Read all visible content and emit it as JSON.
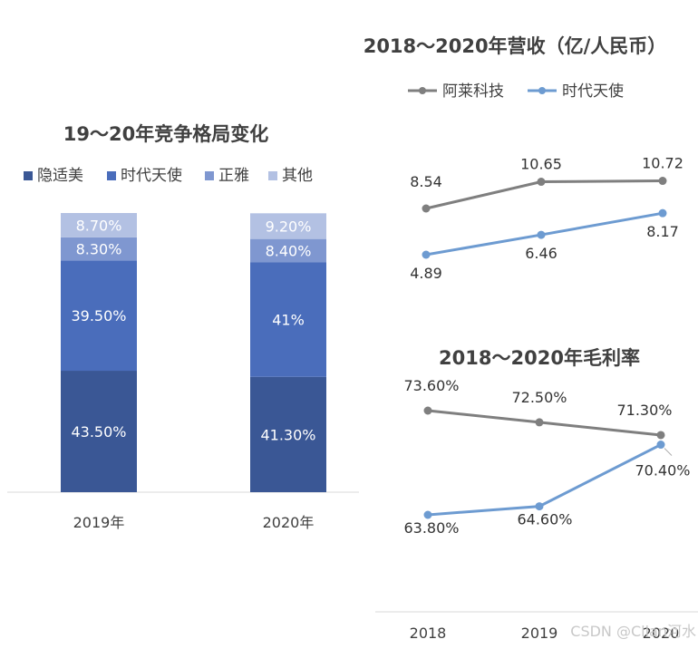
{
  "chart_data": [
    {
      "type": "bar",
      "stacked": true,
      "title": "19～20年竞争格局变化",
      "legend_position": "top",
      "categories": [
        "2019年",
        "2020年"
      ],
      "series": [
        {
          "name": "隐适美",
          "values": [
            43.5,
            41.3
          ],
          "labels": [
            "43.50%",
            "41.30%"
          ],
          "color": "#3a5795"
        },
        {
          "name": "时代天使",
          "values": [
            39.5,
            41.0
          ],
          "labels": [
            "39.50%",
            "41%"
          ],
          "color": "#4a6dbb"
        },
        {
          "name": "正雅",
          "values": [
            8.3,
            8.4
          ],
          "labels": [
            "8.30%",
            "8.40%"
          ],
          "color": "#7f97d0"
        },
        {
          "name": "其他",
          "values": [
            8.7,
            9.2
          ],
          "labels": [
            "8.70%",
            "9.20%"
          ],
          "color": "#b3c1e3"
        }
      ],
      "ylim": [
        0,
        100
      ],
      "grid": false
    },
    {
      "type": "line",
      "title": "2018～2020年营收（亿/人民币）",
      "legend_position": "top",
      "x": [
        "2018",
        "2019",
        "2020"
      ],
      "series": [
        {
          "name": "阿莱科技",
          "values": [
            8.54,
            10.65,
            10.72
          ],
          "labels": [
            "8.54",
            "10.65",
            "10.72"
          ],
          "color": "#7f7f7f"
        },
        {
          "name": "时代天使",
          "values": [
            4.89,
            6.46,
            8.17
          ],
          "labels": [
            "4.89",
            "6.46",
            "8.17"
          ],
          "color": "#6d9bd1"
        }
      ],
      "grid": false
    },
    {
      "type": "line",
      "title": "2018～2020年毛利率",
      "x": [
        "2018",
        "2019",
        "2020"
      ],
      "series": [
        {
          "values": [
            73.6,
            72.5,
            71.3
          ],
          "labels": [
            "73.60%",
            "72.50%",
            "71.30%"
          ],
          "color": "#7f7f7f"
        },
        {
          "values": [
            63.8,
            64.6,
            70.4
          ],
          "labels": [
            "63.80%",
            "64.60%",
            "70.40%"
          ],
          "color": "#6d9bd1"
        }
      ],
      "grid": false
    }
  ],
  "watermark": "CSDN @Clian河水"
}
